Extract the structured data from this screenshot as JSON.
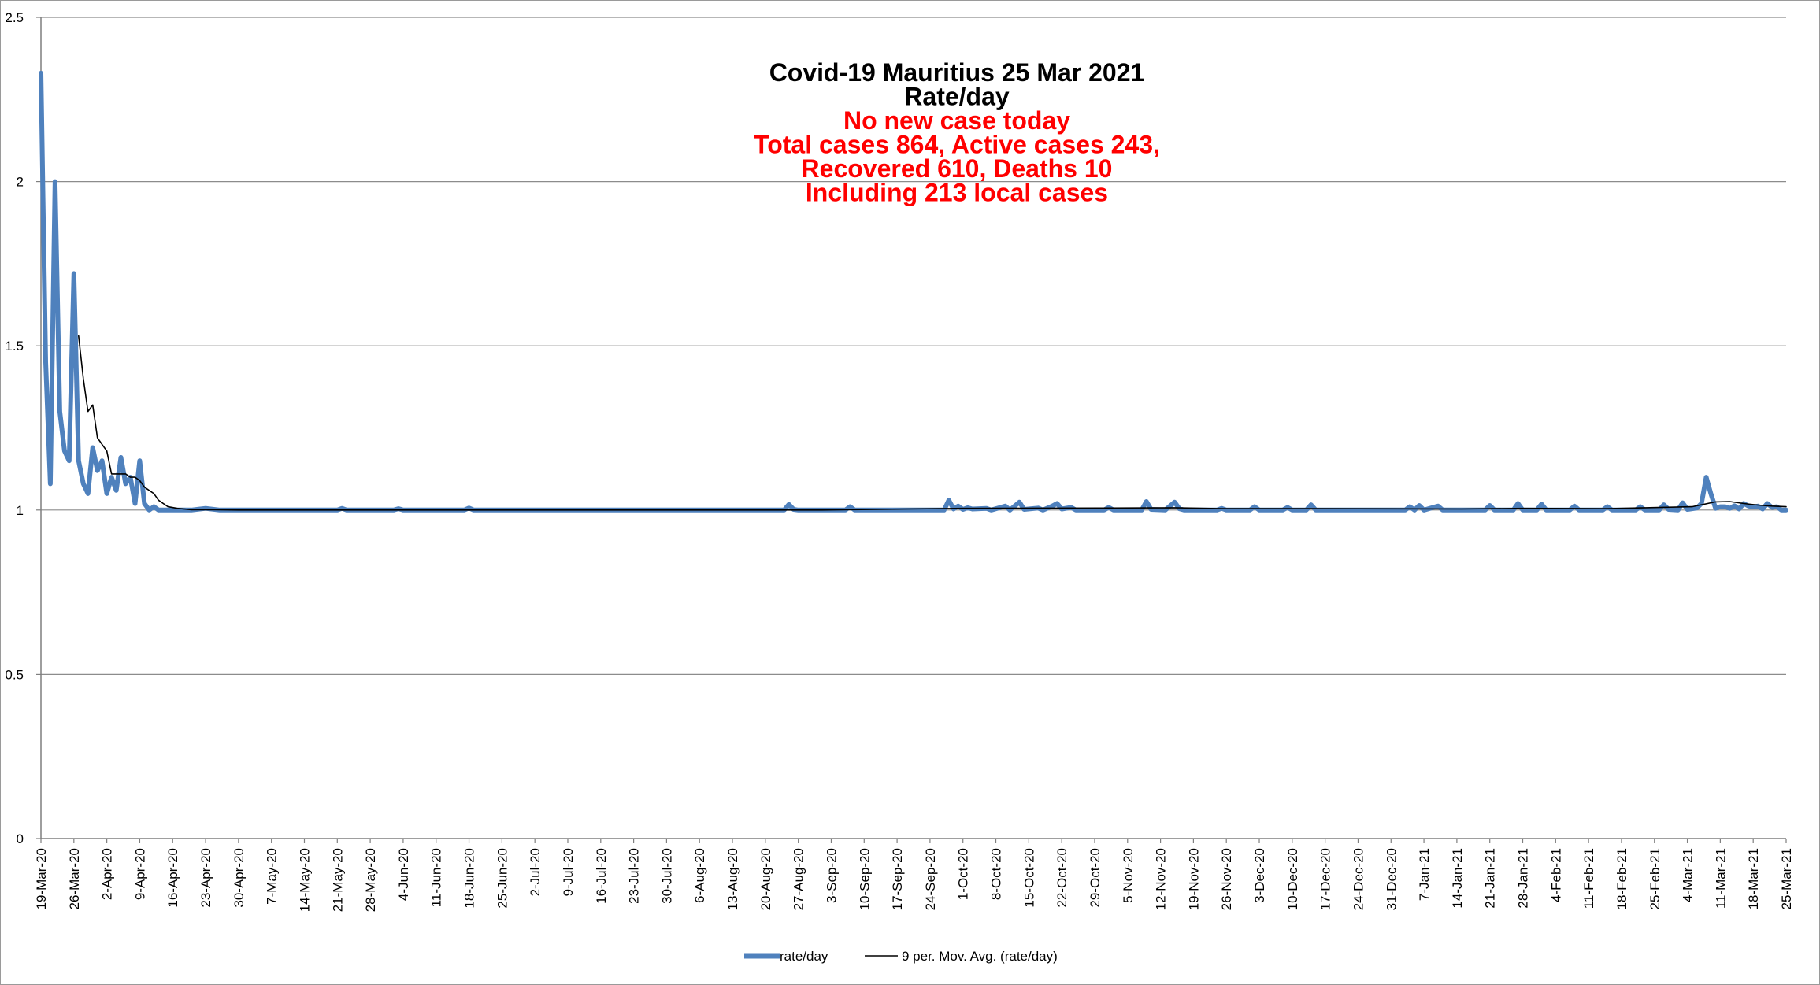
{
  "chart_data": {
    "type": "line",
    "title_lines": [
      {
        "text": "Covid-19 Mauritius 25 Mar 2021",
        "color": "#000000"
      },
      {
        "text": "Rate/day",
        "color": "#000000"
      },
      {
        "text": "No new case today",
        "color": "#ff0000"
      },
      {
        "text": "Total cases 864, Active cases 243,",
        "color": "#ff0000"
      },
      {
        "text": "Recovered 610, Deaths 10",
        "color": "#ff0000"
      },
      {
        "text": "Including 213 local cases",
        "color": "#ff0000"
      }
    ],
    "xlabel": "",
    "ylabel": "",
    "ylim": [
      0,
      2.5
    ],
    "yticks": [
      "0",
      "0.5",
      "1",
      "1.5",
      "2",
      "2.5"
    ],
    "grid": true,
    "legend_position": "bottom",
    "x_start": "19-Mar-20",
    "x_end": "25-Mar-21",
    "xtick_labels": [
      "19-Mar-20",
      "26-Mar-20",
      "2-Apr-20",
      "9-Apr-20",
      "16-Apr-20",
      "23-Apr-20",
      "30-Apr-20",
      "7-May-20",
      "14-May-20",
      "21-May-20",
      "28-May-20",
      "4-Jun-20",
      "11-Jun-20",
      "18-Jun-20",
      "25-Jun-20",
      "2-Jul-20",
      "9-Jul-20",
      "16-Jul-20",
      "23-Jul-20",
      "30-Jul-20",
      "6-Aug-20",
      "13-Aug-20",
      "20-Aug-20",
      "27-Aug-20",
      "3-Sep-20",
      "10-Sep-20",
      "17-Sep-20",
      "24-Sep-20",
      "1-Oct-20",
      "8-Oct-20",
      "15-Oct-20",
      "22-Oct-20",
      "29-Oct-20",
      "5-Nov-20",
      "12-Nov-20",
      "19-Nov-20",
      "26-Nov-20",
      "3-Dec-20",
      "10-Dec-20",
      "17-Dec-20",
      "24-Dec-20",
      "31-Dec-20",
      "7-Jan-21",
      "14-Jan-21",
      "21-Jan-21",
      "28-Jan-21",
      "4-Feb-21",
      "11-Feb-21",
      "18-Feb-21",
      "25-Feb-21",
      "4-Mar-21",
      "11-Mar-21",
      "18-Mar-21",
      "25-Mar-21"
    ],
    "series": [
      {
        "name": "rate/day",
        "color": "#4f81bd",
        "points": [
          [
            "19-Mar-20",
            2.33
          ],
          [
            "20-Mar-20",
            1.45
          ],
          [
            "21-Mar-20",
            1.08
          ],
          [
            "22-Mar-20",
            2.0
          ],
          [
            "23-Mar-20",
            1.3
          ],
          [
            "24-Mar-20",
            1.18
          ],
          [
            "25-Mar-20",
            1.15
          ],
          [
            "26-Mar-20",
            1.72
          ],
          [
            "27-Mar-20",
            1.15
          ],
          [
            "28-Mar-20",
            1.08
          ],
          [
            "29-Mar-20",
            1.05
          ],
          [
            "30-Mar-20",
            1.19
          ],
          [
            "31-Mar-20",
            1.12
          ],
          [
            "1-Apr-20",
            1.15
          ],
          [
            "2-Apr-20",
            1.05
          ],
          [
            "3-Apr-20",
            1.1
          ],
          [
            "4-Apr-20",
            1.06
          ],
          [
            "5-Apr-20",
            1.16
          ],
          [
            "6-Apr-20",
            1.08
          ],
          [
            "7-Apr-20",
            1.1
          ],
          [
            "8-Apr-20",
            1.02
          ],
          [
            "9-Apr-20",
            1.15
          ],
          [
            "10-Apr-20",
            1.02
          ],
          [
            "11-Apr-20",
            1.0
          ],
          [
            "12-Apr-20",
            1.01
          ],
          [
            "13-Apr-20",
            1.0
          ],
          [
            "20-Apr-20",
            1.0
          ],
          [
            "23-Apr-20",
            1.005
          ],
          [
            "26-Apr-20",
            1.0
          ],
          [
            "21-May-20",
            1.0
          ],
          [
            "22-May-20",
            1.005
          ],
          [
            "23-May-20",
            1.0
          ],
          [
            "2-Jun-20",
            1.0
          ],
          [
            "3-Jun-20",
            1.004
          ],
          [
            "4-Jun-20",
            1.0
          ],
          [
            "17-Jun-20",
            1.0
          ],
          [
            "18-Jun-20",
            1.006
          ],
          [
            "19-Jun-20",
            1.0
          ],
          [
            "24-Aug-20",
            1.0
          ],
          [
            "25-Aug-20",
            1.017
          ],
          [
            "26-Aug-20",
            1.002
          ],
          [
            "27-Aug-20",
            1.0
          ],
          [
            "6-Sep-20",
            1.0
          ],
          [
            "7-Sep-20",
            1.01
          ],
          [
            "8-Sep-20",
            1.0
          ],
          [
            "27-Sep-20",
            1.0
          ],
          [
            "28-Sep-20",
            1.03
          ],
          [
            "29-Sep-20",
            1.003
          ],
          [
            "30-Sep-20",
            1.012
          ],
          [
            "1-Oct-20",
            1.002
          ],
          [
            "2-Oct-20",
            1.007
          ],
          [
            "3-Oct-20",
            1.003
          ],
          [
            "6-Oct-20",
            1.005
          ],
          [
            "7-Oct-20",
            1.0
          ],
          [
            "10-Oct-20",
            1.012
          ],
          [
            "11-Oct-20",
            1.0
          ],
          [
            "13-Oct-20",
            1.024
          ],
          [
            "14-Oct-20",
            1.002
          ],
          [
            "17-Oct-20",
            1.006
          ],
          [
            "18-Oct-20",
            1.0
          ],
          [
            "20-Oct-20",
            1.012
          ],
          [
            "21-Oct-20",
            1.02
          ],
          [
            "22-Oct-20",
            1.003
          ],
          [
            "24-Oct-20",
            1.008
          ],
          [
            "25-Oct-20",
            1.0
          ],
          [
            "31-Oct-20",
            1.0
          ],
          [
            "1-Nov-20",
            1.008
          ],
          [
            "2-Nov-20",
            1.0
          ],
          [
            "8-Nov-20",
            1.0
          ],
          [
            "9-Nov-20",
            1.026
          ],
          [
            "10-Nov-20",
            1.002
          ],
          [
            "13-Nov-20",
            1.0
          ],
          [
            "15-Nov-20",
            1.024
          ],
          [
            "16-Nov-20",
            1.004
          ],
          [
            "17-Nov-20",
            1.0
          ],
          [
            "24-Nov-20",
            1.0
          ],
          [
            "25-Nov-20",
            1.005
          ],
          [
            "26-Nov-20",
            1.0
          ],
          [
            "1-Dec-20",
            1.0
          ],
          [
            "2-Dec-20",
            1.01
          ],
          [
            "3-Dec-20",
            1.0
          ],
          [
            "8-Dec-20",
            1.0
          ],
          [
            "9-Dec-20",
            1.008
          ],
          [
            "10-Dec-20",
            1.0
          ],
          [
            "13-Dec-20",
            1.0
          ],
          [
            "14-Dec-20",
            1.016
          ],
          [
            "15-Dec-20",
            1.0
          ],
          [
            "3-Jan-21",
            1.0
          ],
          [
            "4-Jan-21",
            1.01
          ],
          [
            "5-Jan-21",
            1.0
          ],
          [
            "6-Jan-21",
            1.014
          ],
          [
            "7-Jan-21",
            1.0
          ],
          [
            "10-Jan-21",
            1.012
          ],
          [
            "11-Jan-21",
            1.0
          ],
          [
            "20-Jan-21",
            1.0
          ],
          [
            "21-Jan-21",
            1.014
          ],
          [
            "22-Jan-21",
            1.0
          ],
          [
            "26-Jan-21",
            1.0
          ],
          [
            "27-Jan-21",
            1.02
          ],
          [
            "28-Jan-21",
            1.0
          ],
          [
            "31-Jan-21",
            1.0
          ],
          [
            "1-Feb-21",
            1.018
          ],
          [
            "2-Feb-21",
            1.0
          ],
          [
            "7-Feb-21",
            1.0
          ],
          [
            "8-Feb-21",
            1.012
          ],
          [
            "9-Feb-21",
            1.0
          ],
          [
            "14-Feb-21",
            1.0
          ],
          [
            "15-Feb-21",
            1.01
          ],
          [
            "16-Feb-21",
            1.0
          ],
          [
            "21-Feb-21",
            1.0
          ],
          [
            "22-Feb-21",
            1.01
          ],
          [
            "23-Feb-21",
            1.0
          ],
          [
            "26-Feb-21",
            1.0
          ],
          [
            "27-Feb-21",
            1.016
          ],
          [
            "28-Feb-21",
            1.002
          ],
          [
            "2-Mar-21",
            1.0
          ],
          [
            "3-Mar-21",
            1.022
          ],
          [
            "4-Mar-21",
            1.002
          ],
          [
            "6-Mar-21",
            1.006
          ],
          [
            "7-Mar-21",
            1.02
          ],
          [
            "8-Mar-21",
            1.1
          ],
          [
            "9-Mar-21",
            1.05
          ],
          [
            "10-Mar-21",
            1.005
          ],
          [
            "11-Mar-21",
            1.01
          ],
          [
            "12-Mar-21",
            1.01
          ],
          [
            "13-Mar-21",
            1.005
          ],
          [
            "14-Mar-21",
            1.013
          ],
          [
            "15-Mar-21",
            1.003
          ],
          [
            "16-Mar-21",
            1.02
          ],
          [
            "17-Mar-21",
            1.012
          ],
          [
            "18-Mar-21",
            1.01
          ],
          [
            "19-Mar-21",
            1.012
          ],
          [
            "20-Mar-21",
            1.003
          ],
          [
            "21-Mar-21",
            1.02
          ],
          [
            "22-Mar-21",
            1.008
          ],
          [
            "23-Mar-21",
            1.01
          ],
          [
            "24-Mar-21",
            1.0
          ],
          [
            "25-Mar-21",
            1.0
          ]
        ]
      },
      {
        "name": "9 per. Mov. Avg. (rate/day)",
        "color": "#000000",
        "points": [
          [
            "27-Mar-20",
            1.53
          ],
          [
            "28-Mar-20",
            1.4
          ],
          [
            "29-Mar-20",
            1.3
          ],
          [
            "30-Mar-20",
            1.32
          ],
          [
            "31-Mar-20",
            1.22
          ],
          [
            "1-Apr-20",
            1.2
          ],
          [
            "2-Apr-20",
            1.18
          ],
          [
            "3-Apr-20",
            1.11
          ],
          [
            "4-Apr-20",
            1.11
          ],
          [
            "5-Apr-20",
            1.11
          ],
          [
            "6-Apr-20",
            1.11
          ],
          [
            "7-Apr-20",
            1.1
          ],
          [
            "8-Apr-20",
            1.1
          ],
          [
            "9-Apr-20",
            1.09
          ],
          [
            "10-Apr-20",
            1.07
          ],
          [
            "11-Apr-20",
            1.06
          ],
          [
            "12-Apr-20",
            1.05
          ],
          [
            "13-Apr-20",
            1.03
          ],
          [
            "14-Apr-20",
            1.02
          ],
          [
            "15-Apr-20",
            1.01
          ],
          [
            "17-Apr-20",
            1.005
          ],
          [
            "20-Apr-20",
            1.001
          ],
          [
            "25-Apr-20",
            1.001
          ],
          [
            "30-Apr-20",
            1.0
          ],
          [
            "1-Sep-20",
            1.0
          ],
          [
            "1-Oct-20",
            1.005
          ],
          [
            "1-Nov-20",
            1.006
          ],
          [
            "15-Nov-20",
            1.007
          ],
          [
            "25-Nov-20",
            1.004
          ],
          [
            "15-Dec-20",
            1.004
          ],
          [
            "15-Jan-21",
            1.003
          ],
          [
            "28-Jan-21",
            1.005
          ],
          [
            "15-Feb-21",
            1.004
          ],
          [
            "5-Mar-21",
            1.01
          ],
          [
            "10-Mar-21",
            1.025
          ],
          [
            "13-Mar-21",
            1.026
          ],
          [
            "16-Mar-21",
            1.02
          ],
          [
            "19-Mar-21",
            1.015
          ],
          [
            "22-Mar-21",
            1.012
          ],
          [
            "25-Mar-21",
            1.01
          ]
        ]
      }
    ]
  }
}
